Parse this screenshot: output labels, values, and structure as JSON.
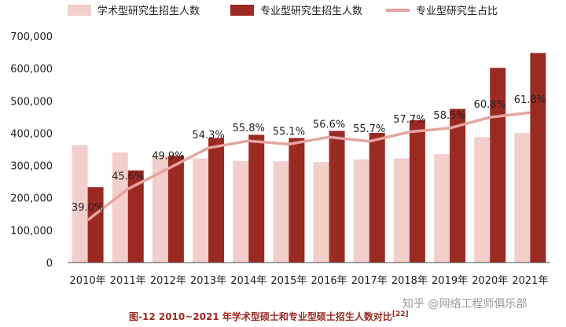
{
  "chart_data": {
    "type": "bar",
    "categories": [
      "2010年",
      "2011年",
      "2012年",
      "2013年",
      "2014年",
      "2015年",
      "2016年",
      "2017年",
      "2018年",
      "2019年",
      "2020年",
      "2021年"
    ],
    "series": [
      {
        "name": "学术型研究生招生人数",
        "type": "bar",
        "color": "#f2cfcb",
        "values": [
          363000,
          341000,
          330000,
          322000,
          314000,
          313000,
          311000,
          319000,
          322000,
          335000,
          388000,
          401000
        ]
      },
      {
        "name": "专业型研究生招生人数",
        "type": "bar",
        "color": "#9b2a22",
        "values": [
          233000,
          285000,
          330000,
          385000,
          395000,
          385000,
          407000,
          401000,
          440000,
          475000,
          602000,
          648000
        ]
      },
      {
        "name": "专业型研究生占比",
        "type": "line",
        "color": "#e6a5a0",
        "values": [
          39.0,
          45.6,
          49.9,
          54.3,
          55.8,
          55.1,
          56.6,
          55.7,
          57.7,
          58.5,
          60.8,
          61.8
        ],
        "labels": [
          "39.0%",
          "45.6%",
          "49.9%",
          "54.3%",
          "55.8%",
          "55.1%",
          "56.6%",
          "55.7%",
          "57.7%",
          "58.5%",
          "60.8%",
          "61.8%"
        ]
      }
    ],
    "y_ticks": [
      "0",
      "100,000",
      "200,000",
      "300,000",
      "400,000",
      "500,000",
      "600,000",
      "700,000"
    ],
    "ylim": [
      0,
      700000
    ],
    "legend_position": "top"
  },
  "caption": {
    "prefix": "图-12 2010~2021 年学术型硕士和专业型硕士招生人数对比",
    "ref": "[22]"
  },
  "watermark": "知乎 @网络工程师俱乐部"
}
